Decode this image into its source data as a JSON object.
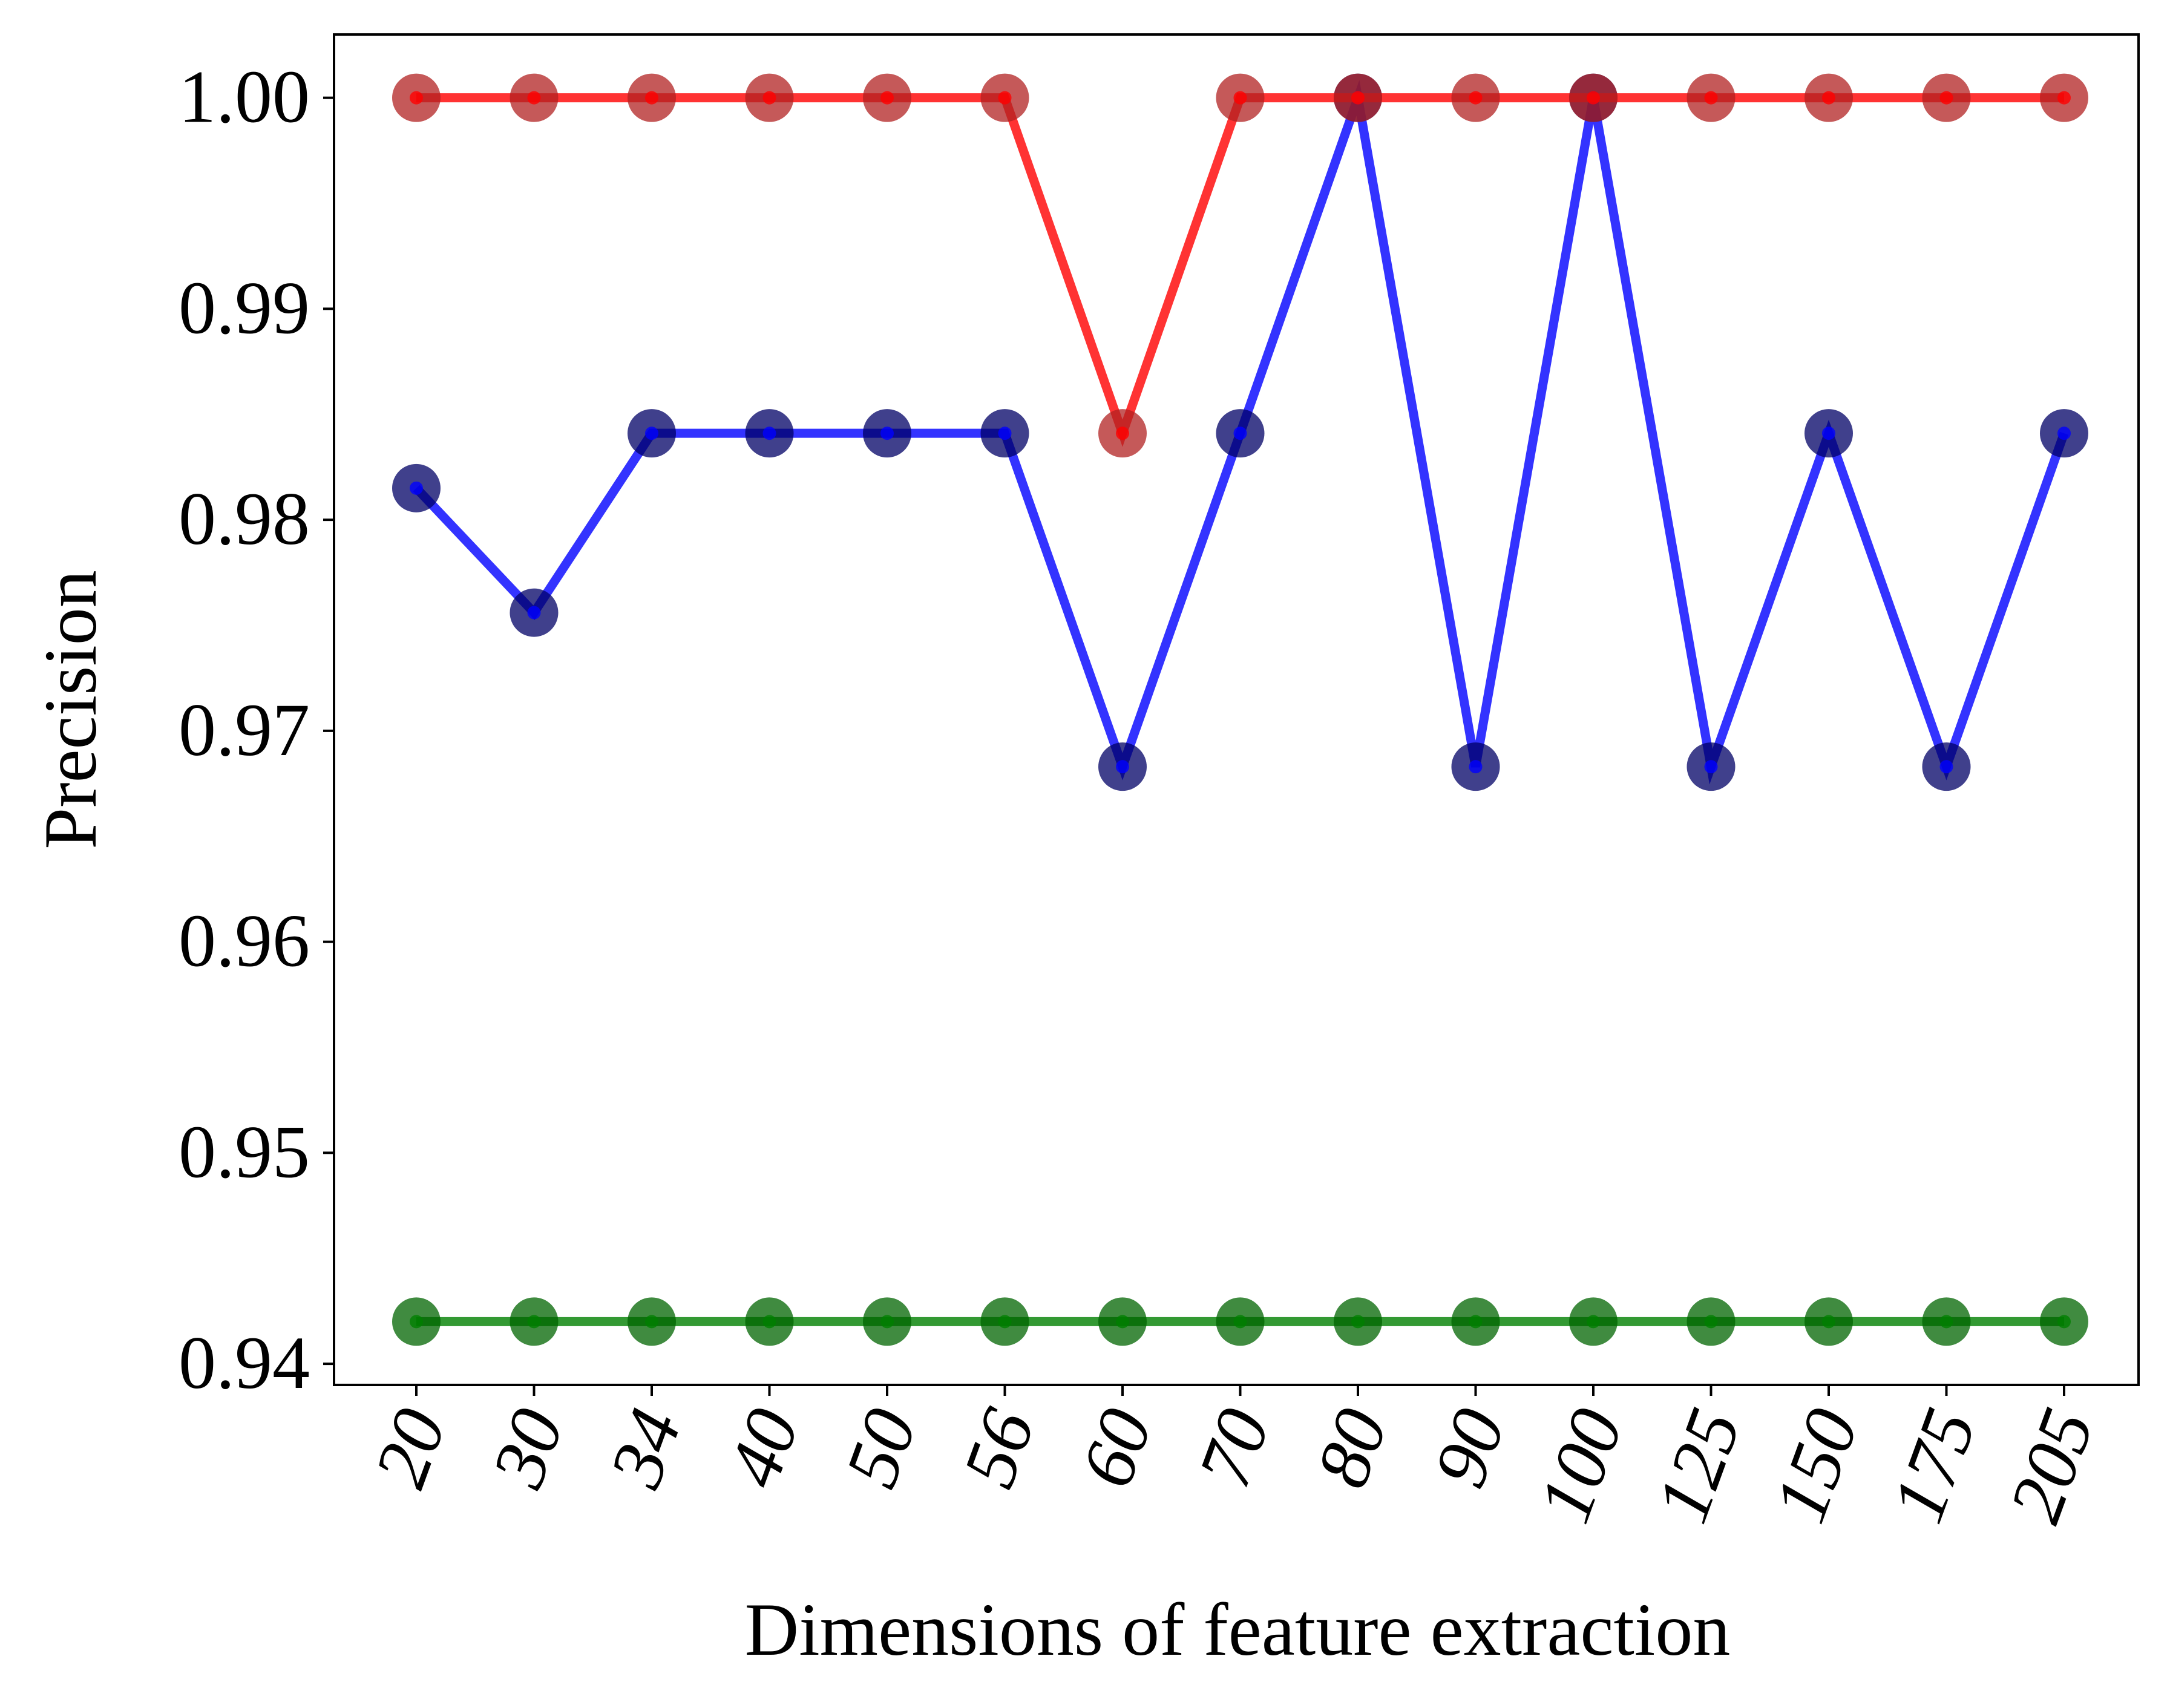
{
  "chart_data": {
    "type": "line",
    "title": "",
    "xlabel": "Dimensions of feature extraction",
    "ylabel": "Precision",
    "categories": [
      "20",
      "30",
      "34",
      "40",
      "50",
      "56",
      "60",
      "70",
      "80",
      "90",
      "100",
      "125",
      "150",
      "175",
      "205"
    ],
    "ylim": [
      0.939,
      1.003
    ],
    "yticks": [
      "0.94",
      "0.95",
      "0.96",
      "0.97",
      "0.98",
      "0.99",
      "1.00"
    ],
    "ytick_values": [
      0.94,
      0.95,
      0.96,
      0.97,
      0.98,
      0.99,
      1.0
    ],
    "grid": false,
    "legend": "none",
    "series": [
      {
        "color": "#ff0000",
        "marker_color": "#b22222",
        "values": [
          1.0,
          1.0,
          1.0,
          1.0,
          1.0,
          1.0,
          0.9841,
          1.0,
          1.0,
          1.0,
          1.0,
          1.0,
          1.0,
          1.0,
          1.0
        ]
      },
      {
        "color": "#0000ff",
        "marker_color": "#000066",
        "values": [
          0.9815,
          0.9756,
          0.9841,
          0.9841,
          0.9841,
          0.9841,
          0.9683,
          0.9841,
          1.0,
          0.9683,
          1.0,
          0.9683,
          0.9841,
          0.9683,
          0.9841
        ]
      },
      {
        "color": "#008000",
        "marker_color": "#006400",
        "values": [
          0.942,
          0.942,
          0.942,
          0.942,
          0.942,
          0.942,
          0.942,
          0.942,
          0.942,
          0.942,
          0.942,
          0.942,
          0.942,
          0.942,
          0.942
        ]
      }
    ]
  }
}
